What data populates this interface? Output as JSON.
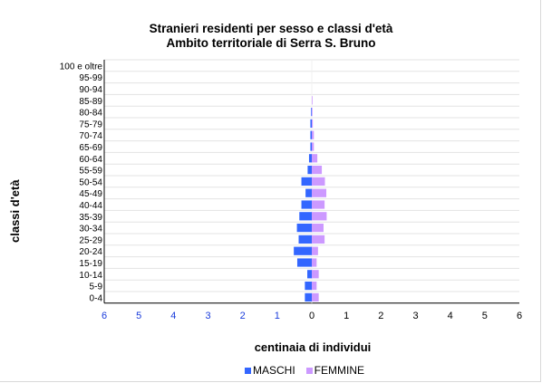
{
  "chart_data": {
    "type": "bar",
    "title": "Stranieri residenti per sesso e classi d'età",
    "subtitle": "Ambito territoriale di Serra S. Bruno",
    "xlabel": "centinaia di individui",
    "ylabel": "classi d'età",
    "categories": [
      "0-4",
      "5-9",
      "10-14",
      "15-19",
      "20-24",
      "25-29",
      "30-34",
      "35-39",
      "40-44",
      "45-49",
      "50-54",
      "55-59",
      "60-64",
      "65-69",
      "70-74",
      "75-79",
      "80-84",
      "85-89",
      "90-94",
      "95-99",
      "100 e oltre"
    ],
    "x_ticks_left": [
      "6",
      "5",
      "4",
      "3",
      "2",
      "1",
      "0"
    ],
    "x_ticks_right": [
      "1",
      "2",
      "3",
      "4",
      "5",
      "6"
    ],
    "xlim": [
      -6,
      6
    ],
    "series": [
      {
        "name": "MASCHI",
        "color": "#3366ff",
        "values": [
          0.2,
          0.2,
          0.13,
          0.42,
          0.52,
          0.38,
          0.43,
          0.36,
          0.3,
          0.18,
          0.3,
          0.12,
          0.08,
          0.04,
          0.04,
          0.04,
          0.02,
          0.0,
          0.0,
          0.0,
          0.0
        ]
      },
      {
        "name": "FEMMINE",
        "color": "#cc99ff",
        "values": [
          0.2,
          0.14,
          0.2,
          0.14,
          0.18,
          0.37,
          0.34,
          0.43,
          0.37,
          0.42,
          0.38,
          0.29,
          0.16,
          0.06,
          0.06,
          0.03,
          0.02,
          0.02,
          0.0,
          0.0,
          0.0
        ]
      }
    ],
    "grid": true,
    "legend_position": "bottom"
  }
}
